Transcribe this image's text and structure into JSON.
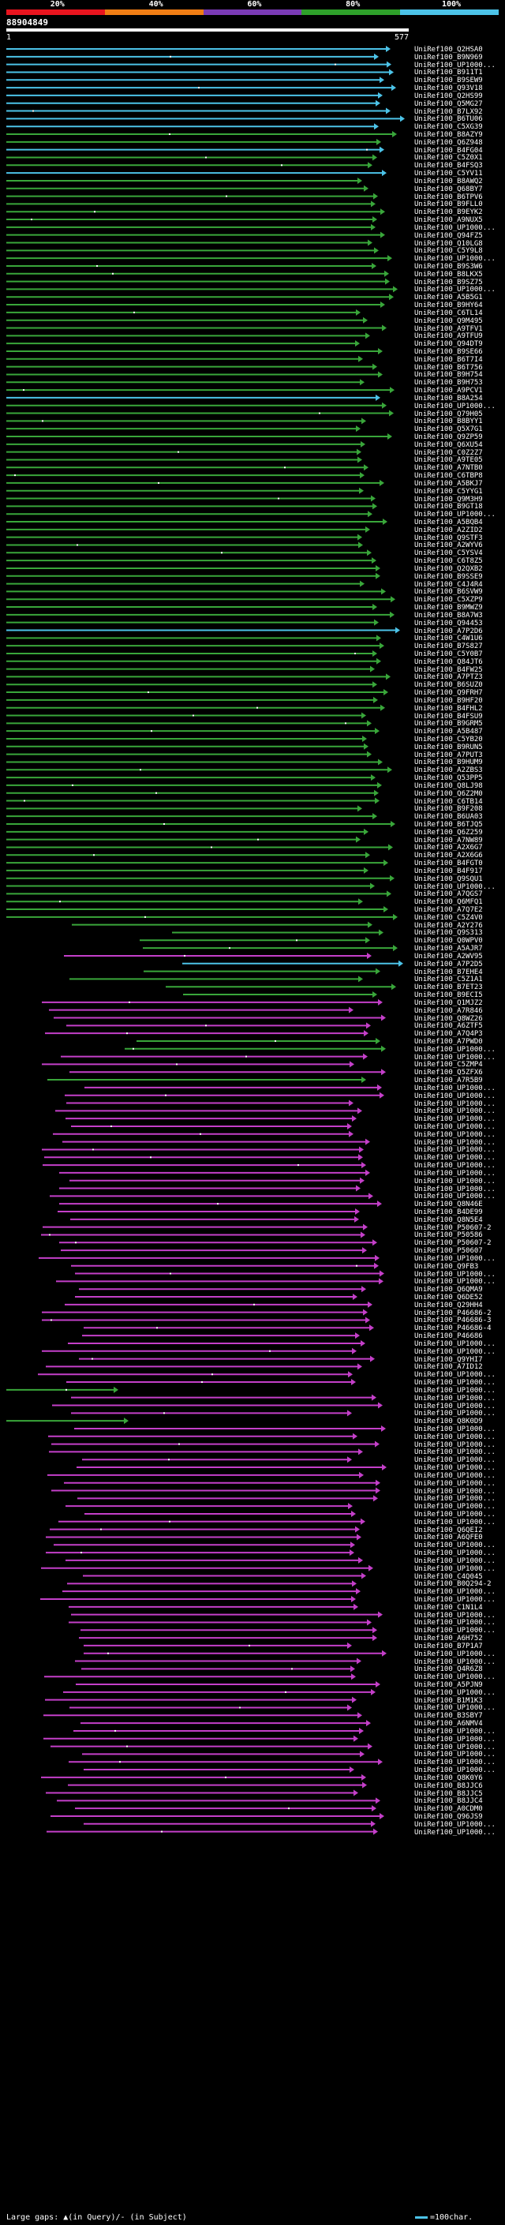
{
  "header": {
    "percent_labels": [
      "20%",
      "40%",
      "60%",
      "80%",
      "100%"
    ],
    "band_colors": [
      "#e8141e",
      "#f07d14",
      "#7a3bb5",
      "#2ea02a",
      "#4cc3e8"
    ],
    "query_id": "88904849",
    "scale_start": "1",
    "scale_end": "577"
  },
  "legend": {
    "gaps_text": "Large gaps: ▲(in Query)/- (in Subject)",
    "scale_text": "=100char."
  },
  "colors": {
    "cyan": "#4cc3e8",
    "green": "#39a63a",
    "magenta": "#c43fc9",
    "gap": "#ffffff"
  },
  "hits": [
    {
      "label": "UniRef100_Q2HSA0",
      "color": "cyan"
    },
    {
      "label": "UniRef100_B9N969",
      "color": "cyan"
    },
    {
      "label": "UniRef100_UP1000...",
      "color": "cyan"
    },
    {
      "label": "UniRef100_B911T1",
      "color": "cyan"
    },
    {
      "label": "UniRef100_B9SEW9",
      "color": "cyan"
    },
    {
      "label": "UniRef100_Q93V18",
      "color": "cyan"
    },
    {
      "label": "UniRef100_Q2HS99",
      "color": "cyan"
    },
    {
      "label": "UniRef100_Q5MG27",
      "color": "cyan"
    },
    {
      "label": "UniRef100_B7LX92",
      "color": "cyan"
    },
    {
      "label": "UniRef100_B6TU06",
      "color": "cyan"
    },
    {
      "label": "UniRef100_C5XG39",
      "color": "cyan"
    },
    {
      "label": "UniRef100_B8AZY9",
      "color": "green"
    },
    {
      "label": "UniRef100_Q6Z948",
      "color": "green"
    },
    {
      "label": "UniRef100_B4FG04",
      "color": "cyan"
    },
    {
      "label": "UniRef100_C5Z0X1",
      "color": "green"
    },
    {
      "label": "UniRef100_B4FSQ3",
      "color": "green"
    },
    {
      "label": "UniRef100_C5YV11",
      "color": "cyan"
    },
    {
      "label": "UniRef100_B8AWQ2",
      "color": "green"
    },
    {
      "label": "UniRef100_Q68BY7",
      "color": "green"
    },
    {
      "label": "UniRef100_B6TPV6",
      "color": "green"
    },
    {
      "label": "UniRef100_B9FLL0",
      "color": "green"
    },
    {
      "label": "UniRef100_B9EYK2",
      "color": "green"
    },
    {
      "label": "UniRef100_A9NUX5",
      "color": "green"
    },
    {
      "label": "UniRef100_UP1000...",
      "color": "green"
    },
    {
      "label": "UniRef100_Q94FZ5",
      "color": "green"
    },
    {
      "label": "UniRef100_Q10LG8",
      "color": "green"
    },
    {
      "label": "UniRef100_C5Y9L8",
      "color": "green"
    },
    {
      "label": "UniRef100_UP1000...",
      "color": "green"
    },
    {
      "label": "UniRef100_B9S3W6",
      "color": "green"
    },
    {
      "label": "UniRef100_B8LKX5",
      "color": "green"
    },
    {
      "label": "UniRef100_B9SZ75",
      "color": "green"
    },
    {
      "label": "UniRef100_UP1000...",
      "color": "green"
    },
    {
      "label": "UniRef100_A5B5G1",
      "color": "green"
    },
    {
      "label": "UniRef100_B9HY64",
      "color": "green"
    },
    {
      "label": "UniRef100_C6TL14",
      "color": "green"
    },
    {
      "label": "UniRef100_Q9M495",
      "color": "green"
    },
    {
      "label": "UniRef100_A9TFV1",
      "color": "green"
    },
    {
      "label": "UniRef100_A9TFU9",
      "color": "green"
    },
    {
      "label": "UniRef100_Q94DT9",
      "color": "green"
    },
    {
      "label": "UniRef100_B9SE66",
      "color": "green"
    },
    {
      "label": "UniRef100_B6T7I4",
      "color": "green"
    },
    {
      "label": "UniRef100_B6T756",
      "color": "green"
    },
    {
      "label": "UniRef100_B9H754",
      "color": "green"
    },
    {
      "label": "UniRef100_B9H753",
      "color": "green"
    },
    {
      "label": "UniRef100_A9PCV1",
      "color": "green"
    },
    {
      "label": "UniRef100_B8A254",
      "color": "cyan"
    },
    {
      "label": "UniRef100_UP1000...",
      "color": "green"
    },
    {
      "label": "UniRef100_Q79H05",
      "color": "green"
    },
    {
      "label": "UniRef100_B8BYY1",
      "color": "green"
    },
    {
      "label": "UniRef100_Q5X7G1",
      "color": "green"
    },
    {
      "label": "UniRef100_Q9ZP59",
      "color": "green"
    },
    {
      "label": "UniRef100_Q6XU54",
      "color": "green"
    },
    {
      "label": "UniRef100_C0Z2Z7",
      "color": "green"
    },
    {
      "label": "UniRef100_A9TE05",
      "color": "green"
    },
    {
      "label": "UniRef100_A7NTB0",
      "color": "green"
    },
    {
      "label": "UniRef100_C6TBP8",
      "color": "green"
    },
    {
      "label": "UniRef100_A5BKJ7",
      "color": "green"
    },
    {
      "label": "UniRef100_C5YYG1",
      "color": "green"
    },
    {
      "label": "UniRef100_Q9M3H9",
      "color": "green"
    },
    {
      "label": "UniRef100_B9GT18",
      "color": "green"
    },
    {
      "label": "UniRef100_UP1000...",
      "color": "green"
    },
    {
      "label": "UniRef100_A5BQB4",
      "color": "green"
    },
    {
      "label": "UniRef100_A2ZID2",
      "color": "green"
    },
    {
      "label": "UniRef100_Q9STF3",
      "color": "green"
    },
    {
      "label": "UniRef100_A2WYV6",
      "color": "green"
    },
    {
      "label": "UniRef100_C5YSV4",
      "color": "green"
    },
    {
      "label": "UniRef100_C6T8Z5",
      "color": "green"
    },
    {
      "label": "UniRef100_Q2QXB2",
      "color": "green"
    },
    {
      "label": "UniRef100_B9SSE9",
      "color": "green"
    },
    {
      "label": "UniRef100_C4J4R4",
      "color": "green"
    },
    {
      "label": "UniRef100_B6SVW9",
      "color": "green"
    },
    {
      "label": "UniRef100_C5XZP9",
      "color": "green"
    },
    {
      "label": "UniRef100_B9MWZ9",
      "color": "green"
    },
    {
      "label": "UniRef100_B8A7W3",
      "color": "green"
    },
    {
      "label": "UniRef100_Q94453",
      "color": "green"
    },
    {
      "label": "UniRef100_A7P2D6",
      "color": "cyan"
    },
    {
      "label": "UniRef100_C4W1U6",
      "color": "green"
    },
    {
      "label": "UniRef100_B7S827",
      "color": "green"
    },
    {
      "label": "UniRef100_C5Y0B7",
      "color": "green"
    },
    {
      "label": "UniRef100_Q84JT6",
      "color": "green"
    },
    {
      "label": "UniRef100_B4FW25",
      "color": "green"
    },
    {
      "label": "UniRef100_A7PTZ3",
      "color": "green"
    },
    {
      "label": "UniRef100_B6SUZ0",
      "color": "green"
    },
    {
      "label": "UniRef100_Q9FRH7",
      "color": "green"
    },
    {
      "label": "UniRef100_B9HF20",
      "color": "green"
    },
    {
      "label": "UniRef100_B4FHL2",
      "color": "green"
    },
    {
      "label": "UniRef100_B4FSU9",
      "color": "green"
    },
    {
      "label": "UniRef100_B9GRM5",
      "color": "green"
    },
    {
      "label": "UniRef100_A5B487",
      "color": "green"
    },
    {
      "label": "UniRef100_C5YB20",
      "color": "green"
    },
    {
      "label": "UniRef100_B9RUN5",
      "color": "green"
    },
    {
      "label": "UniRef100_A7PUT3",
      "color": "green"
    },
    {
      "label": "UniRef100_B9HUM9",
      "color": "green"
    },
    {
      "label": "UniRef100_A2ZBS3",
      "color": "green"
    },
    {
      "label": "UniRef100_Q53PP5",
      "color": "green"
    },
    {
      "label": "UniRef100_Q8LJ98",
      "color": "green"
    },
    {
      "label": "UniRef100_Q6Z2M0",
      "color": "green"
    },
    {
      "label": "UniRef100_C6TB14",
      "color": "green"
    },
    {
      "label": "UniRef100_B9F208",
      "color": "green"
    },
    {
      "label": "UniRef100_B6UA03",
      "color": "green"
    },
    {
      "label": "UniRef100_B6TJQ5",
      "color": "green"
    },
    {
      "label": "UniRef100_Q6Z259",
      "color": "green"
    },
    {
      "label": "UniRef100_A7NW89",
      "color": "green"
    },
    {
      "label": "UniRef100_A2X6G7",
      "color": "green"
    },
    {
      "label": "UniRef100_A2X6G6",
      "color": "green"
    },
    {
      "label": "UniRef100_B4FGT0",
      "color": "green"
    },
    {
      "label": "UniRef100_B4F917",
      "color": "green"
    },
    {
      "label": "UniRef100_Q9SQU1",
      "color": "green"
    },
    {
      "label": "UniRef100_UP1000...",
      "color": "green"
    },
    {
      "label": "UniRef100_A7QGS7",
      "color": "green"
    },
    {
      "label": "UniRef100_Q6MFQ1",
      "color": "green"
    },
    {
      "label": "UniRef100_A7Q7E2",
      "color": "green"
    },
    {
      "label": "UniRef100_C5Z4V0",
      "color": "green"
    },
    {
      "label": "UniRef100_A2Y276",
      "color": "green"
    },
    {
      "label": "UniRef100_Q9S313",
      "color": "green"
    },
    {
      "label": "UniRef100_Q0WPV0",
      "color": "green"
    },
    {
      "label": "UniRef100_A5AJR7",
      "color": "green"
    },
    {
      "label": "UniRef100_A2WV95",
      "color": "magenta"
    },
    {
      "label": "UniRef100_A7P2D5",
      "color": "cyan"
    },
    {
      "label": "UniRef100_B7EHE4",
      "color": "green"
    },
    {
      "label": "UniRef100_C5Z1A1",
      "color": "green"
    },
    {
      "label": "UniRef100_B7ET23",
      "color": "green"
    },
    {
      "label": "UniRef100_B9ECI5",
      "color": "green"
    },
    {
      "label": "UniRef100_Q1MJZ2",
      "color": "magenta"
    },
    {
      "label": "UniRef100_A7R846",
      "color": "magenta"
    },
    {
      "label": "UniRef100_Q8WZ26",
      "color": "magenta"
    },
    {
      "label": "UniRef100_A6ZTF5",
      "color": "magenta"
    },
    {
      "label": "UniRef100_A7Q4P3",
      "color": "magenta"
    },
    {
      "label": "UniRef100_A7PWD0",
      "color": "green"
    },
    {
      "label": "UniRef100_UP1000...",
      "color": "green"
    },
    {
      "label": "UniRef100_UP1000...",
      "color": "magenta"
    },
    {
      "label": "UniRef100_C5ZMP4",
      "color": "magenta"
    },
    {
      "label": "UniRef100_Q5ZFX6",
      "color": "magenta"
    },
    {
      "label": "UniRef100_A7R5B9",
      "color": "green"
    },
    {
      "label": "UniRef100_UP1000...",
      "color": "magenta"
    },
    {
      "label": "UniRef100_UP1000...",
      "color": "magenta"
    },
    {
      "label": "UniRef100_UP1000...",
      "color": "magenta"
    },
    {
      "label": "UniRef100_UP1000...",
      "color": "magenta"
    },
    {
      "label": "UniRef100_UP1000...",
      "color": "magenta"
    },
    {
      "label": "UniRef100_UP1000...",
      "color": "magenta"
    },
    {
      "label": "UniRef100_UP1000...",
      "color": "magenta"
    },
    {
      "label": "UniRef100_UP1000...",
      "color": "magenta"
    },
    {
      "label": "UniRef100_UP1000...",
      "color": "magenta"
    },
    {
      "label": "UniRef100_UP1000...",
      "color": "magenta"
    },
    {
      "label": "UniRef100_UP1000...",
      "color": "magenta"
    },
    {
      "label": "UniRef100_UP1000...",
      "color": "magenta"
    },
    {
      "label": "UniRef100_UP1000...",
      "color": "magenta"
    },
    {
      "label": "UniRef100_UP1000...",
      "color": "magenta"
    },
    {
      "label": "UniRef100_UP1000...",
      "color": "magenta"
    },
    {
      "label": "UniRef100_Q8N46E",
      "color": "magenta"
    },
    {
      "label": "UniRef100_B4DE99",
      "color": "magenta"
    },
    {
      "label": "UniRef100_Q8N5E4",
      "color": "magenta"
    },
    {
      "label": "UniRef100_P50607-2",
      "color": "magenta"
    },
    {
      "label": "UniRef100_P50586",
      "color": "magenta"
    },
    {
      "label": "UniRef100_P50607-2",
      "color": "magenta"
    },
    {
      "label": "UniRef100_P50607",
      "color": "magenta"
    },
    {
      "label": "UniRef100_UP1000...",
      "color": "magenta"
    },
    {
      "label": "UniRef100_Q9FB3",
      "color": "magenta"
    },
    {
      "label": "UniRef100_UP1000...",
      "color": "magenta"
    },
    {
      "label": "UniRef100_UP1000...",
      "color": "magenta"
    },
    {
      "label": "UniRef100_Q6QMA9",
      "color": "magenta"
    },
    {
      "label": "UniRef100_Q6DE52",
      "color": "magenta"
    },
    {
      "label": "UniRef100_Q29HH4",
      "color": "magenta"
    },
    {
      "label": "UniRef100_P46686-2",
      "color": "magenta"
    },
    {
      "label": "UniRef100_P46686-3",
      "color": "magenta"
    },
    {
      "label": "UniRef100_P46686-4",
      "color": "magenta"
    },
    {
      "label": "UniRef100_P46686",
      "color": "magenta"
    },
    {
      "label": "UniRef100_UP1000...",
      "color": "magenta"
    },
    {
      "label": "UniRef100_UP1000...",
      "color": "magenta"
    },
    {
      "label": "UniRef100_Q9YHI7",
      "color": "magenta"
    },
    {
      "label": "UniRef100_A7ID12",
      "color": "magenta"
    },
    {
      "label": "UniRef100_UP1000...",
      "color": "magenta"
    },
    {
      "label": "UniRef100_UP1000...",
      "color": "magenta"
    },
    {
      "label": "UniRef100_UP1000...",
      "color": "green"
    },
    {
      "label": "UniRef100_UP1000...",
      "color": "magenta"
    },
    {
      "label": "UniRef100_UP1000...",
      "color": "magenta"
    },
    {
      "label": "UniRef100_UP1000...",
      "color": "magenta"
    },
    {
      "label": "UniRef100_Q8K0D9",
      "color": "green"
    },
    {
      "label": "UniRef100_UP1000...",
      "color": "magenta"
    },
    {
      "label": "UniRef100_UP1000...",
      "color": "magenta"
    },
    {
      "label": "UniRef100_UP1000...",
      "color": "magenta"
    },
    {
      "label": "UniRef100_UP1000...",
      "color": "magenta"
    },
    {
      "label": "UniRef100_UP1000...",
      "color": "magenta"
    },
    {
      "label": "UniRef100_UP1000...",
      "color": "magenta"
    },
    {
      "label": "UniRef100_UP1000...",
      "color": "magenta"
    },
    {
      "label": "UniRef100_UP1000...",
      "color": "magenta"
    },
    {
      "label": "UniRef100_UP1000...",
      "color": "magenta"
    },
    {
      "label": "UniRef100_UP1000...",
      "color": "magenta"
    },
    {
      "label": "UniRef100_UP1000...",
      "color": "magenta"
    },
    {
      "label": "UniRef100_UP1000...",
      "color": "magenta"
    },
    {
      "label": "UniRef100_UP1000...",
      "color": "magenta"
    },
    {
      "label": "UniRef100_Q6QEI2",
      "color": "magenta"
    },
    {
      "label": "UniRef100_A6QFE0",
      "color": "magenta"
    },
    {
      "label": "UniRef100_UP1000...",
      "color": "magenta"
    },
    {
      "label": "UniRef100_UP1000...",
      "color": "magenta"
    },
    {
      "label": "UniRef100_UP1000...",
      "color": "magenta"
    },
    {
      "label": "UniRef100_UP1000...",
      "color": "magenta"
    },
    {
      "label": "UniRef100_C4Q045",
      "color": "magenta"
    },
    {
      "label": "UniRef100_B0Q294-2",
      "color": "magenta"
    },
    {
      "label": "UniRef100_UP1000...",
      "color": "magenta"
    },
    {
      "label": "UniRef100_UP1000...",
      "color": "magenta"
    },
    {
      "label": "UniRef100_C1N1L4",
      "color": "magenta"
    },
    {
      "label": "UniRef100_UP1000...",
      "color": "magenta"
    },
    {
      "label": "UniRef100_UP1000...",
      "color": "magenta"
    },
    {
      "label": "UniRef100_UP1000...",
      "color": "magenta"
    },
    {
      "label": "UniRef100_A6H752",
      "color": "magenta"
    },
    {
      "label": "UniRef100_B7P1A7",
      "color": "magenta"
    },
    {
      "label": "UniRef100_UP1000...",
      "color": "magenta"
    },
    {
      "label": "UniRef100_UP1000...",
      "color": "magenta"
    },
    {
      "label": "UniRef100_Q4R6Z8",
      "color": "magenta"
    },
    {
      "label": "UniRef100_UP1000...",
      "color": "magenta"
    },
    {
      "label": "UniRef100_A5PJN9",
      "color": "magenta"
    },
    {
      "label": "UniRef100_UP1000...",
      "color": "magenta"
    },
    {
      "label": "UniRef100_B1M1K3",
      "color": "magenta"
    },
    {
      "label": "UniRef100_UP1000...",
      "color": "magenta"
    },
    {
      "label": "UniRef100_B3SBY7",
      "color": "magenta"
    },
    {
      "label": "UniRef100_A6NMV4",
      "color": "magenta"
    },
    {
      "label": "UniRef100_UP1000...",
      "color": "magenta"
    },
    {
      "label": "UniRef100_UP1000...",
      "color": "magenta"
    },
    {
      "label": "UniRef100_UP1000...",
      "color": "magenta"
    },
    {
      "label": "UniRef100_UP1000...",
      "color": "magenta"
    },
    {
      "label": "UniRef100_UP1000...",
      "color": "magenta"
    },
    {
      "label": "UniRef100_UP1000...",
      "color": "magenta"
    },
    {
      "label": "UniRef100_Q8K0Y6",
      "color": "magenta"
    },
    {
      "label": "UniRef100_B8JJC6",
      "color": "magenta"
    },
    {
      "label": "UniRef100_B8JJC5",
      "color": "magenta"
    },
    {
      "label": "UniRef100_B8JJC4",
      "color": "magenta"
    },
    {
      "label": "UniRef100_A0CDM0",
      "color": "magenta"
    },
    {
      "label": "UniRef100_Q96JS9",
      "color": "magenta"
    },
    {
      "label": "UniRef100_UP1000...",
      "color": "magenta"
    },
    {
      "label": "UniRef100_UP1000...",
      "color": "magenta"
    }
  ]
}
